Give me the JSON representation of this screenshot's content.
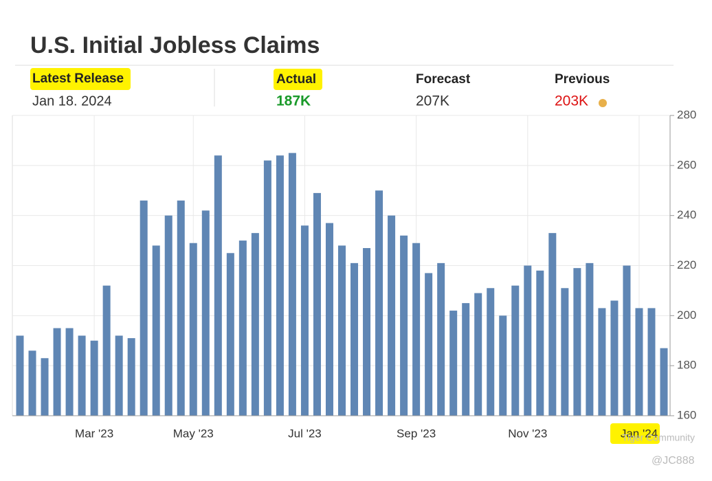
{
  "title": "U.S. Initial Jobless Claims",
  "release": {
    "latest_label": "Latest Release",
    "latest_date": "Jan 18. 2024",
    "actual_label": "Actual",
    "actual": "187K",
    "forecast_label": "Forecast",
    "forecast": "207K",
    "previous_label": "Previous",
    "previous": "203K"
  },
  "watermark": [
    "Tiger Community",
    "@JC888"
  ],
  "chart_data": {
    "type": "bar",
    "color": "#5f86b4",
    "categories": [
      null,
      null,
      null,
      null,
      null,
      null,
      "Mar '23",
      null,
      null,
      null,
      null,
      null,
      null,
      null,
      "May '23",
      null,
      null,
      null,
      null,
      null,
      null,
      null,
      null,
      "Jul '23",
      null,
      null,
      null,
      null,
      null,
      null,
      null,
      null,
      "Sep '23",
      null,
      null,
      null,
      null,
      null,
      null,
      null,
      null,
      "Nov '23",
      null,
      null,
      null,
      null,
      null,
      null,
      null,
      null,
      "Jan '24",
      null,
      null
    ],
    "values": [
      192,
      186,
      183,
      195,
      195,
      192,
      190,
      212,
      192,
      191,
      246,
      228,
      240,
      246,
      229,
      242,
      264,
      225,
      230,
      233,
      262,
      264,
      265,
      236,
      249,
      237,
      228,
      221,
      227,
      250,
      240,
      232,
      229,
      217,
      221,
      202,
      205,
      209,
      211,
      200,
      212,
      220,
      218,
      233,
      211,
      219,
      221,
      203,
      206,
      220,
      203,
      203,
      187
    ],
    "ylim": [
      160,
      280
    ],
    "yticks": [
      160,
      180,
      200,
      220,
      240,
      260,
      280
    ],
    "grid": true
  }
}
